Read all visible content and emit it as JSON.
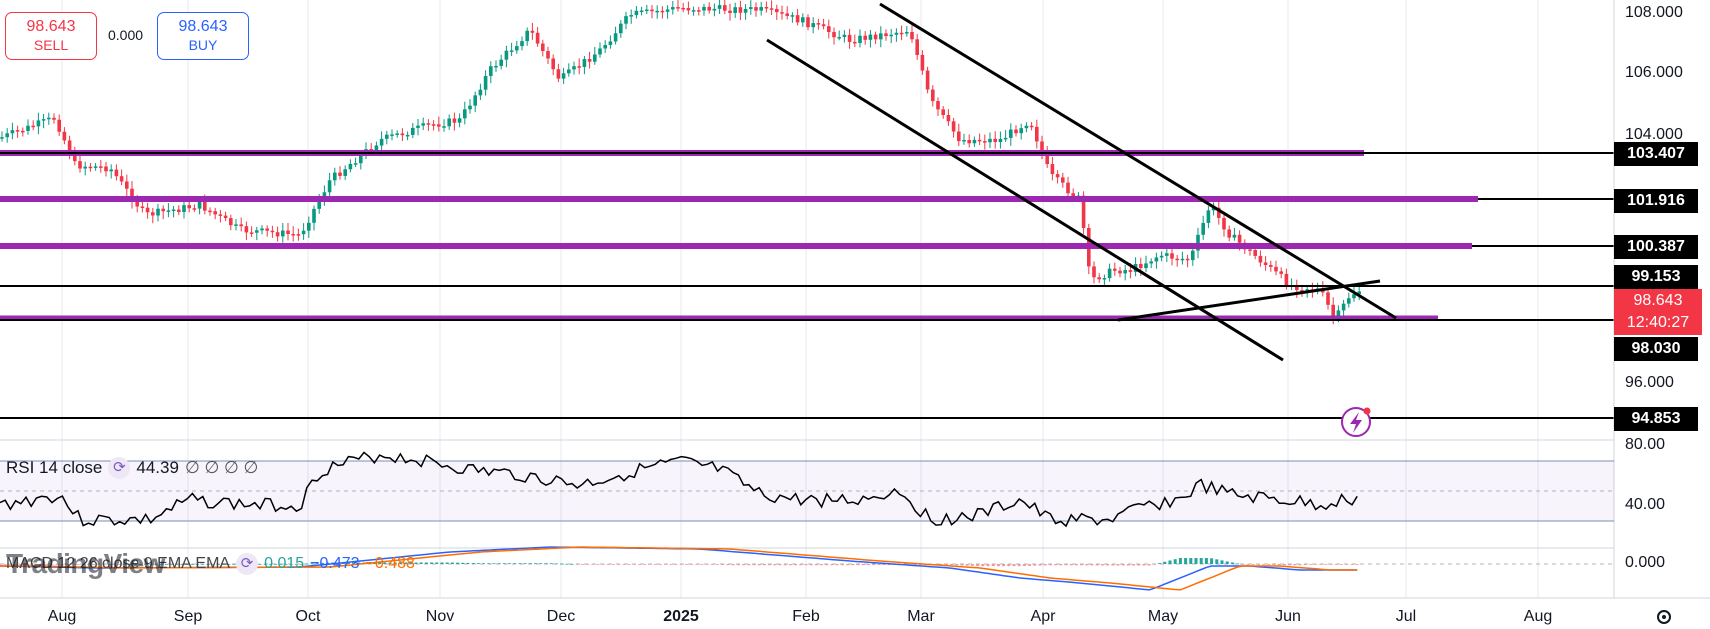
{
  "trade_panel": {
    "sell_price": "98.643",
    "sell_label": "SELL",
    "spread": "0.000",
    "buy_price": "98.643",
    "buy_label": "BUY"
  },
  "price_axis": {
    "ticks": [
      "108.000",
      "106.000",
      "104.000",
      "96.000"
    ]
  },
  "level_labels": [
    "103.407",
    "101.916",
    "100.387",
    "99.153",
    "98.030",
    "94.853"
  ],
  "current_price": {
    "price": "98.643",
    "countdown": "12:40:27"
  },
  "time_axis": [
    "Aug",
    "Sep",
    "Oct",
    "Nov",
    "Dec",
    "2025",
    "Feb",
    "Mar",
    "Apr",
    "May",
    "Jun",
    "Jul",
    "Aug"
  ],
  "rsi": {
    "label": "RSI 14 close",
    "value": "44.39",
    "extra": "∅ ∅ ∅ ∅",
    "axis": [
      "80.00",
      "40.00"
    ]
  },
  "macd": {
    "label": "MACD 12 26 close 9 EMA EMA",
    "hist": "0.015",
    "macd": "−0.473",
    "signal": "−0.488",
    "axis": "0.000"
  },
  "watermark": "TradingView",
  "colors": {
    "up": "#089981",
    "down": "#f23645",
    "level": "#9c27b0",
    "line": "#000000",
    "macd": "#2962ff",
    "signal": "#ff6d00"
  },
  "icons": {
    "indicator": "refresh-icon",
    "settings": "gear-icon",
    "flash": "flash-icon"
  }
}
